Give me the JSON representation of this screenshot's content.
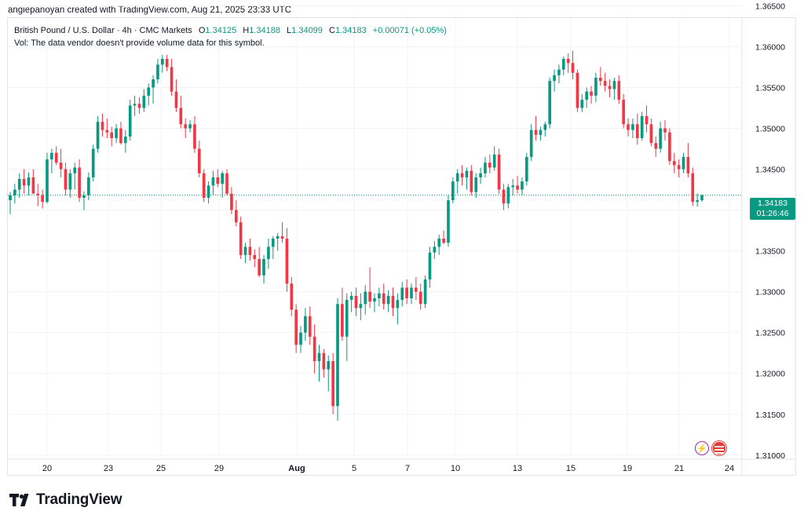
{
  "header": {
    "text": "angiepanoyan created with TradingView.com, Aug 21, 2025 23:33 UTC"
  },
  "legend": {
    "symbol": "British Pound / U.S. Dollar · 4h · CMC Markets",
    "open_label": "O",
    "open": "1.34125",
    "high_label": "H",
    "high": "1.34188",
    "low_label": "L",
    "low": "1.34099",
    "close_label": "C",
    "close": "1.34183",
    "change": "+0.00071 (+0.05%)"
  },
  "volume_note": "Vol: The data vendor doesn't provide volume data for this symbol.",
  "price_badge": {
    "price": "1.34183",
    "countdown": "01:26:46"
  },
  "footer": {
    "brand": "TradingView"
  },
  "icons": {
    "flash": "lightning-icon",
    "flag": "us-flag-icon"
  },
  "colors": {
    "up": "#089981",
    "down": "#f23645",
    "badge": "#089981",
    "grid": "#f0f3fa"
  },
  "chart_data": {
    "type": "candlestick",
    "symbol": "GBPUSD",
    "interval": "4h",
    "ylim": [
      1.3095,
      1.3635
    ],
    "y_ticks": [
      "1.31000",
      "1.31500",
      "1.32000",
      "1.32500",
      "1.33000",
      "1.33500",
      "1.34000",
      "1.34500",
      "1.35000",
      "1.35500",
      "1.36000",
      "1.36500"
    ],
    "x_ticks": [
      "20",
      "23",
      "25",
      "29",
      "Aug",
      "5",
      "7",
      "10",
      "13",
      "15",
      "19",
      "21",
      "24"
    ],
    "last_price": 1.34183,
    "last_price_line": true,
    "grid": true,
    "ohlc": [
      [
        1.3412,
        1.3422,
        1.3395,
        1.3418
      ],
      [
        1.3418,
        1.3432,
        1.3408,
        1.3425
      ],
      [
        1.3425,
        1.3445,
        1.3415,
        1.3438
      ],
      [
        1.3438,
        1.345,
        1.342,
        1.343
      ],
      [
        1.343,
        1.3446,
        1.3418,
        1.344
      ],
      [
        1.344,
        1.345,
        1.3425,
        1.342
      ],
      [
        1.342,
        1.3432,
        1.3405,
        1.3418
      ],
      [
        1.3418,
        1.3425,
        1.3402,
        1.341
      ],
      [
        1.341,
        1.347,
        1.3408,
        1.3462
      ],
      [
        1.3462,
        1.3475,
        1.3445,
        1.347
      ],
      [
        1.347,
        1.3478,
        1.3455,
        1.3458
      ],
      [
        1.3458,
        1.3475,
        1.344,
        1.345
      ],
      [
        1.345,
        1.3458,
        1.3418,
        1.3425
      ],
      [
        1.3425,
        1.345,
        1.3415,
        1.3445
      ],
      [
        1.3445,
        1.3458,
        1.3425,
        1.3452
      ],
      [
        1.3452,
        1.3462,
        1.341,
        1.3415
      ],
      [
        1.3415,
        1.3423,
        1.34,
        1.3418
      ],
      [
        1.3418,
        1.3446,
        1.3412,
        1.344
      ],
      [
        1.344,
        1.348,
        1.3435,
        1.3475
      ],
      [
        1.3475,
        1.3515,
        1.347,
        1.3508
      ],
      [
        1.3508,
        1.3518,
        1.349,
        1.3498
      ],
      [
        1.3498,
        1.3512,
        1.3488,
        1.3495
      ],
      [
        1.3495,
        1.3502,
        1.3478,
        1.3488
      ],
      [
        1.3488,
        1.3505,
        1.3482,
        1.35
      ],
      [
        1.35,
        1.3508,
        1.348,
        1.3482
      ],
      [
        1.3482,
        1.3498,
        1.347,
        1.349
      ],
      [
        1.349,
        1.3535,
        1.3485,
        1.3528
      ],
      [
        1.3528,
        1.354,
        1.3515,
        1.353
      ],
      [
        1.353,
        1.3538,
        1.3518,
        1.3525
      ],
      [
        1.3525,
        1.3548,
        1.352,
        1.354
      ],
      [
        1.354,
        1.3555,
        1.3528,
        1.355
      ],
      [
        1.355,
        1.3565,
        1.353,
        1.356
      ],
      [
        1.356,
        1.3585,
        1.3555,
        1.3578
      ],
      [
        1.3578,
        1.359,
        1.3568,
        1.3585
      ],
      [
        1.3585,
        1.359,
        1.357,
        1.3575
      ],
      [
        1.3575,
        1.3585,
        1.354,
        1.3545
      ],
      [
        1.3545,
        1.356,
        1.352,
        1.3525
      ],
      [
        1.3525,
        1.354,
        1.35,
        1.3505
      ],
      [
        1.3505,
        1.3512,
        1.3488,
        1.35
      ],
      [
        1.35,
        1.351,
        1.3495,
        1.3505
      ],
      [
        1.3505,
        1.3515,
        1.347,
        1.3475
      ],
      [
        1.3475,
        1.3485,
        1.344,
        1.3445
      ],
      [
        1.3445,
        1.345,
        1.341,
        1.3415
      ],
      [
        1.3415,
        1.3435,
        1.3408,
        1.343
      ],
      [
        1.343,
        1.3448,
        1.3418,
        1.344
      ],
      [
        1.344,
        1.345,
        1.3428,
        1.3432
      ],
      [
        1.3432,
        1.3448,
        1.3415,
        1.3445
      ],
      [
        1.3445,
        1.345,
        1.3418,
        1.342
      ],
      [
        1.342,
        1.3428,
        1.3395,
        1.34
      ],
      [
        1.34,
        1.3412,
        1.338,
        1.3385
      ],
      [
        1.3385,
        1.3392,
        1.334,
        1.3345
      ],
      [
        1.3345,
        1.336,
        1.3335,
        1.3355
      ],
      [
        1.3355,
        1.3365,
        1.3338,
        1.3345
      ],
      [
        1.3345,
        1.3352,
        1.333,
        1.334
      ],
      [
        1.334,
        1.3355,
        1.3318,
        1.332
      ],
      [
        1.332,
        1.3345,
        1.331,
        1.334
      ],
      [
        1.334,
        1.3365,
        1.3328,
        1.3355
      ],
      [
        1.3355,
        1.3368,
        1.334,
        1.3365
      ],
      [
        1.3365,
        1.3372,
        1.335,
        1.3368
      ],
      [
        1.3368,
        1.3385,
        1.336,
        1.3365
      ],
      [
        1.3365,
        1.3378,
        1.33,
        1.331
      ],
      [
        1.331,
        1.3318,
        1.327,
        1.3278
      ],
      [
        1.3278,
        1.3285,
        1.3225,
        1.3235
      ],
      [
        1.3235,
        1.3258,
        1.3225,
        1.325
      ],
      [
        1.325,
        1.328,
        1.324,
        1.327
      ],
      [
        1.327,
        1.3282,
        1.3235,
        1.3245
      ],
      [
        1.3245,
        1.326,
        1.32,
        1.3215
      ],
      [
        1.3215,
        1.3235,
        1.319,
        1.3225
      ],
      [
        1.3225,
        1.323,
        1.3195,
        1.3205
      ],
      [
        1.3205,
        1.3222,
        1.3178,
        1.3215
      ],
      [
        1.3215,
        1.3225,
        1.315,
        1.316
      ],
      [
        1.316,
        1.3292,
        1.3142,
        1.3285
      ],
      [
        1.3285,
        1.3305,
        1.324,
        1.3245
      ],
      [
        1.3245,
        1.3298,
        1.3215,
        1.329
      ],
      [
        1.329,
        1.33,
        1.3275,
        1.3295
      ],
      [
        1.3295,
        1.3305,
        1.327,
        1.328
      ],
      [
        1.328,
        1.3298,
        1.3265,
        1.3285
      ],
      [
        1.3285,
        1.3308,
        1.3272,
        1.33
      ],
      [
        1.33,
        1.333,
        1.328,
        1.3288
      ],
      [
        1.3288,
        1.3298,
        1.3275,
        1.3292
      ],
      [
        1.3292,
        1.3305,
        1.3282,
        1.3298
      ],
      [
        1.3298,
        1.331,
        1.3278,
        1.3285
      ],
      [
        1.3285,
        1.3302,
        1.3275,
        1.3295
      ],
      [
        1.3295,
        1.3305,
        1.327,
        1.328
      ],
      [
        1.328,
        1.3298,
        1.326,
        1.329
      ],
      [
        1.329,
        1.3312,
        1.3282,
        1.3305
      ],
      [
        1.3305,
        1.3315,
        1.3285,
        1.3292
      ],
      [
        1.3292,
        1.331,
        1.3285,
        1.3305
      ],
      [
        1.3305,
        1.3318,
        1.329,
        1.33
      ],
      [
        1.33,
        1.331,
        1.3278,
        1.3285
      ],
      [
        1.3285,
        1.332,
        1.328,
        1.3315
      ],
      [
        1.3315,
        1.3355,
        1.3305,
        1.3348
      ],
      [
        1.3348,
        1.3362,
        1.334,
        1.3355
      ],
      [
        1.3355,
        1.337,
        1.3345,
        1.3365
      ],
      [
        1.3365,
        1.3375,
        1.3358,
        1.336
      ],
      [
        1.336,
        1.3418,
        1.3355,
        1.3412
      ],
      [
        1.3412,
        1.344,
        1.3408,
        1.3435
      ],
      [
        1.3435,
        1.345,
        1.342,
        1.3445
      ],
      [
        1.3445,
        1.3455,
        1.343,
        1.344
      ],
      [
        1.344,
        1.3452,
        1.3425,
        1.3448
      ],
      [
        1.3448,
        1.3455,
        1.3418,
        1.3422
      ],
      [
        1.3422,
        1.3445,
        1.3415,
        1.344
      ],
      [
        1.344,
        1.3452,
        1.3432,
        1.3445
      ],
      [
        1.3445,
        1.3465,
        1.344,
        1.3458
      ],
      [
        1.3458,
        1.3468,
        1.3445,
        1.3452
      ],
      [
        1.3452,
        1.3478,
        1.3448,
        1.3468
      ],
      [
        1.3468,
        1.3475,
        1.342,
        1.3425
      ],
      [
        1.3425,
        1.3432,
        1.34,
        1.3408
      ],
      [
        1.3408,
        1.3432,
        1.3402,
        1.3428
      ],
      [
        1.3428,
        1.3438,
        1.3418,
        1.343
      ],
      [
        1.343,
        1.3442,
        1.342,
        1.3425
      ],
      [
        1.3425,
        1.344,
        1.3418,
        1.3435
      ],
      [
        1.3435,
        1.347,
        1.343,
        1.3465
      ],
      [
        1.3465,
        1.3505,
        1.346,
        1.3498
      ],
      [
        1.3498,
        1.3515,
        1.3485,
        1.3492
      ],
      [
        1.3492,
        1.3502,
        1.3485,
        1.3498
      ],
      [
        1.3498,
        1.3508,
        1.349,
        1.3505
      ],
      [
        1.3505,
        1.3562,
        1.35,
        1.3558
      ],
      [
        1.3558,
        1.3572,
        1.3545,
        1.3565
      ],
      [
        1.3565,
        1.3578,
        1.3555,
        1.3572
      ],
      [
        1.3572,
        1.3588,
        1.3565,
        1.3585
      ],
      [
        1.3585,
        1.3592,
        1.3568,
        1.358
      ],
      [
        1.358,
        1.3595,
        1.356,
        1.3568
      ],
      [
        1.3568,
        1.3572,
        1.352,
        1.3525
      ],
      [
        1.3525,
        1.3542,
        1.352,
        1.3535
      ],
      [
        1.3535,
        1.355,
        1.3525,
        1.3545
      ],
      [
        1.3545,
        1.3552,
        1.353,
        1.354
      ],
      [
        1.354,
        1.3568,
        1.3532,
        1.3562
      ],
      [
        1.3562,
        1.3575,
        1.3552,
        1.3558
      ],
      [
        1.3558,
        1.3568,
        1.3545,
        1.3552
      ],
      [
        1.3552,
        1.356,
        1.3538,
        1.3548
      ],
      [
        1.3548,
        1.3562,
        1.3535,
        1.3558
      ],
      [
        1.3558,
        1.3565,
        1.353,
        1.3535
      ],
      [
        1.3535,
        1.3542,
        1.35,
        1.3505
      ],
      [
        1.3505,
        1.3512,
        1.349,
        1.3498
      ],
      [
        1.3498,
        1.3512,
        1.3488,
        1.3505
      ],
      [
        1.3505,
        1.3518,
        1.348,
        1.3488
      ],
      [
        1.3488,
        1.352,
        1.3485,
        1.3515
      ],
      [
        1.3515,
        1.3528,
        1.3495,
        1.3505
      ],
      [
        1.3505,
        1.3512,
        1.3478,
        1.3482
      ],
      [
        1.3482,
        1.349,
        1.3465,
        1.3475
      ],
      [
        1.3475,
        1.3508,
        1.347,
        1.35
      ],
      [
        1.35,
        1.351,
        1.3485,
        1.3495
      ],
      [
        1.3495,
        1.35,
        1.3455,
        1.346
      ],
      [
        1.346,
        1.347,
        1.3445,
        1.3455
      ],
      [
        1.3455,
        1.3462,
        1.344,
        1.345
      ],
      [
        1.345,
        1.347,
        1.3445,
        1.3465
      ],
      [
        1.3465,
        1.3482,
        1.344,
        1.3445
      ],
      [
        1.3445,
        1.3452,
        1.3405,
        1.341
      ],
      [
        1.341,
        1.342,
        1.3404,
        1.3412
      ],
      [
        1.3412,
        1.3419,
        1.341,
        1.3418
      ]
    ]
  }
}
